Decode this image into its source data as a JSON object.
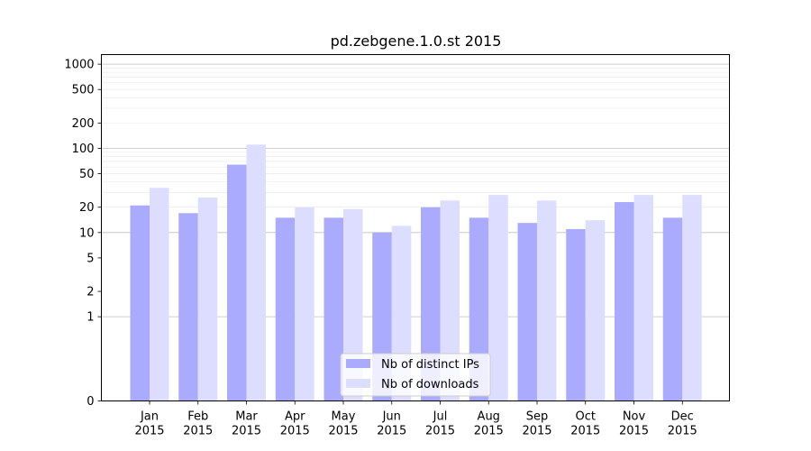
{
  "chart_data": {
    "type": "bar",
    "title": "pd.zebgene.1.0.st 2015",
    "xlabel": "",
    "ylabel": "",
    "y_scale": "symlog",
    "ylim": [
      0,
      1300
    ],
    "grid": true,
    "legend_position": "lower-center",
    "categories": [
      [
        "Jan",
        "2015"
      ],
      [
        "Feb",
        "2015"
      ],
      [
        "Mar",
        "2015"
      ],
      [
        "Apr",
        "2015"
      ],
      [
        "May",
        "2015"
      ],
      [
        "Jun",
        "2015"
      ],
      [
        "Jul",
        "2015"
      ],
      [
        "Aug",
        "2015"
      ],
      [
        "Sep",
        "2015"
      ],
      [
        "Oct",
        "2015"
      ],
      [
        "Nov",
        "2015"
      ],
      [
        "Dec",
        "2015"
      ]
    ],
    "y_ticks": [
      0,
      1,
      2,
      5,
      10,
      20,
      50,
      100,
      200,
      500,
      1000
    ],
    "series": [
      {
        "name": "Nb of distinct IPs",
        "color": "#aaaaff",
        "values": [
          21,
          17,
          64,
          15,
          15,
          10,
          20,
          15,
          13,
          11,
          23,
          15
        ]
      },
      {
        "name": "Nb of downloads",
        "color": "#ddddff",
        "values": [
          34,
          26,
          111,
          20,
          19,
          12,
          24,
          28,
          24,
          14,
          28,
          28
        ]
      }
    ]
  }
}
